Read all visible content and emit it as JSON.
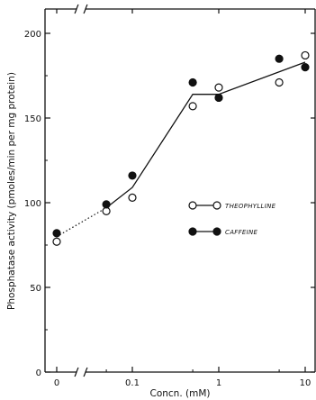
{
  "chart_data": {
    "type": "scatter",
    "xlabel": "Concn. (mM)",
    "ylabel": "Phosphatase activity (pmoles/min per mg protein)",
    "x_scale": "log",
    "x_break": true,
    "x_ticks": [
      {
        "value": 0,
        "label": "0"
      },
      {
        "value": 0.1,
        "label": "0.1"
      },
      {
        "value": 1,
        "label": "1"
      },
      {
        "value": 10,
        "label": "10"
      }
    ],
    "ylim": [
      0,
      210
    ],
    "y_ticks": [
      0,
      50,
      100,
      150,
      200
    ],
    "grid": false,
    "legend_position": "middle-right",
    "series": [
      {
        "name": "THEOPHYLLINE",
        "marker": "open-circle",
        "color": "#111111",
        "points": [
          {
            "x": 0,
            "y": 77
          },
          {
            "x": 0.05,
            "y": 95
          },
          {
            "x": 0.1,
            "y": 103
          },
          {
            "x": 0.5,
            "y": 157
          },
          {
            "x": 1,
            "y": 168
          },
          {
            "x": 5,
            "y": 171
          },
          {
            "x": 10,
            "y": 187
          }
        ]
      },
      {
        "name": "CAFFEINE",
        "marker": "filled-circle",
        "color": "#111111",
        "points": [
          {
            "x": 0,
            "y": 82
          },
          {
            "x": 0.05,
            "y": 99
          },
          {
            "x": 0.1,
            "y": 116
          },
          {
            "x": 0.5,
            "y": 171
          },
          {
            "x": 1,
            "y": 162
          },
          {
            "x": 5,
            "y": 185
          },
          {
            "x": 10,
            "y": 180
          }
        ]
      }
    ],
    "trend_line": {
      "dotted": [
        {
          "x": 0,
          "y": 80
        },
        {
          "x": 0.05,
          "y": 97
        }
      ],
      "solid": [
        {
          "x": 0.05,
          "y": 97
        },
        {
          "x": 0.1,
          "y": 109
        },
        {
          "x": 0.5,
          "y": 164
        },
        {
          "x": 1,
          "y": 164
        },
        {
          "x": 10,
          "y": 183
        }
      ]
    }
  }
}
